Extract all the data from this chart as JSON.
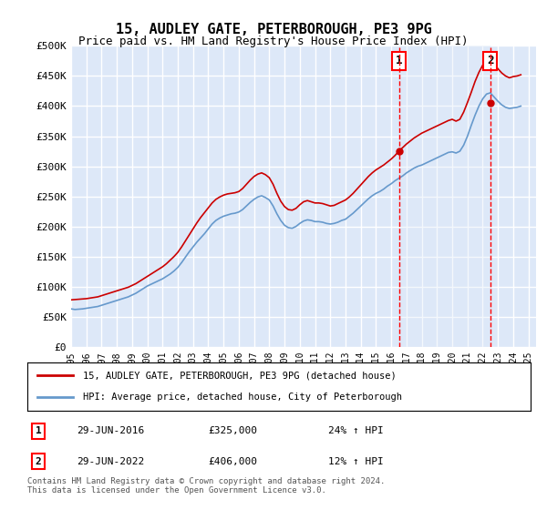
{
  "title": "15, AUDLEY GATE, PETERBOROUGH, PE3 9PG",
  "subtitle": "Price paid vs. HM Land Registry's House Price Index (HPI)",
  "xlabel": "",
  "ylabel": "",
  "ylim": [
    0,
    500000
  ],
  "yticks": [
    0,
    50000,
    100000,
    150000,
    200000,
    250000,
    300000,
    350000,
    400000,
    450000,
    500000
  ],
  "ytick_labels": [
    "£0",
    "£50K",
    "£100K",
    "£150K",
    "£200K",
    "£250K",
    "£300K",
    "£350K",
    "£400K",
    "£450K",
    "£500K"
  ],
  "xlim_start": 1995.0,
  "xlim_end": 2025.5,
  "bg_color": "#dde8f8",
  "plot_bg_color": "#dde8f8",
  "grid_color": "#ffffff",
  "red_color": "#cc0000",
  "blue_color": "#6699cc",
  "point1_x": 2016.5,
  "point1_y": 325000,
  "point1_label": "1",
  "point1_date": "29-JUN-2016",
  "point1_price": "£325,000",
  "point1_hpi": "24% ↑ HPI",
  "point2_x": 2022.5,
  "point2_y": 406000,
  "point2_label": "2",
  "point2_date": "29-JUN-2022",
  "point2_price": "£406,000",
  "point2_hpi": "12% ↑ HPI",
  "legend_line1": "15, AUDLEY GATE, PETERBOROUGH, PE3 9PG (detached house)",
  "legend_line2": "HPI: Average price, detached house, City of Peterborough",
  "footer": "Contains HM Land Registry data © Crown copyright and database right 2024.\nThis data is licensed under the Open Government Licence v3.0.",
  "hpi_data_x": [
    1995.0,
    1995.25,
    1995.5,
    1995.75,
    1996.0,
    1996.25,
    1996.5,
    1996.75,
    1997.0,
    1997.25,
    1997.5,
    1997.75,
    1998.0,
    1998.25,
    1998.5,
    1998.75,
    1999.0,
    1999.25,
    1999.5,
    1999.75,
    2000.0,
    2000.25,
    2000.5,
    2000.75,
    2001.0,
    2001.25,
    2001.5,
    2001.75,
    2002.0,
    2002.25,
    2002.5,
    2002.75,
    2003.0,
    2003.25,
    2003.5,
    2003.75,
    2004.0,
    2004.25,
    2004.5,
    2004.75,
    2005.0,
    2005.25,
    2005.5,
    2005.75,
    2006.0,
    2006.25,
    2006.5,
    2006.75,
    2007.0,
    2007.25,
    2007.5,
    2007.75,
    2008.0,
    2008.25,
    2008.5,
    2008.75,
    2009.0,
    2009.25,
    2009.5,
    2009.75,
    2010.0,
    2010.25,
    2010.5,
    2010.75,
    2011.0,
    2011.25,
    2011.5,
    2011.75,
    2012.0,
    2012.25,
    2012.5,
    2012.75,
    2013.0,
    2013.25,
    2013.5,
    2013.75,
    2014.0,
    2014.25,
    2014.5,
    2014.75,
    2015.0,
    2015.25,
    2015.5,
    2015.75,
    2016.0,
    2016.25,
    2016.5,
    2016.75,
    2017.0,
    2017.25,
    2017.5,
    2017.75,
    2018.0,
    2018.25,
    2018.5,
    2018.75,
    2019.0,
    2019.25,
    2019.5,
    2019.75,
    2020.0,
    2020.25,
    2020.5,
    2020.75,
    2021.0,
    2021.25,
    2021.5,
    2021.75,
    2022.0,
    2022.25,
    2022.5,
    2022.75,
    2023.0,
    2023.25,
    2023.5,
    2023.75,
    2024.0,
    2024.25,
    2024.5
  ],
  "hpi_data_y": [
    63000,
    62000,
    62500,
    63000,
    64000,
    65000,
    66000,
    67000,
    69000,
    71000,
    73000,
    75000,
    77000,
    79000,
    81000,
    83000,
    86000,
    89000,
    93000,
    97000,
    101000,
    104000,
    107000,
    110000,
    113000,
    117000,
    121000,
    126000,
    132000,
    140000,
    149000,
    158000,
    166000,
    174000,
    181000,
    188000,
    196000,
    204000,
    210000,
    214000,
    217000,
    219000,
    221000,
    222000,
    224000,
    228000,
    234000,
    240000,
    245000,
    249000,
    251000,
    248000,
    244000,
    234000,
    221000,
    210000,
    202000,
    198000,
    197000,
    200000,
    205000,
    209000,
    211000,
    210000,
    208000,
    208000,
    207000,
    205000,
    204000,
    205000,
    207000,
    210000,
    212000,
    217000,
    222000,
    228000,
    234000,
    240000,
    246000,
    251000,
    255000,
    258000,
    262000,
    267000,
    271000,
    276000,
    280000,
    284000,
    289000,
    293000,
    297000,
    300000,
    302000,
    305000,
    308000,
    311000,
    314000,
    317000,
    320000,
    323000,
    324000,
    322000,
    325000,
    335000,
    350000,
    368000,
    385000,
    400000,
    412000,
    420000,
    422000,
    415000,
    408000,
    402000,
    398000,
    396000,
    397000,
    398000,
    400000
  ],
  "red_data_x": [
    1995.0,
    1995.25,
    1995.5,
    1995.75,
    1996.0,
    1996.25,
    1996.5,
    1996.75,
    1997.0,
    1997.25,
    1997.5,
    1997.75,
    1998.0,
    1998.25,
    1998.5,
    1998.75,
    1999.0,
    1999.25,
    1999.5,
    1999.75,
    2000.0,
    2000.25,
    2000.5,
    2000.75,
    2001.0,
    2001.25,
    2001.5,
    2001.75,
    2002.0,
    2002.25,
    2002.5,
    2002.75,
    2003.0,
    2003.25,
    2003.5,
    2003.75,
    2004.0,
    2004.25,
    2004.5,
    2004.75,
    2005.0,
    2005.25,
    2005.5,
    2005.75,
    2006.0,
    2006.25,
    2006.5,
    2006.75,
    2007.0,
    2007.25,
    2007.5,
    2007.75,
    2008.0,
    2008.25,
    2008.5,
    2008.75,
    2009.0,
    2009.25,
    2009.5,
    2009.75,
    2010.0,
    2010.25,
    2010.5,
    2010.75,
    2011.0,
    2011.25,
    2011.5,
    2011.75,
    2012.0,
    2012.25,
    2012.5,
    2012.75,
    2013.0,
    2013.25,
    2013.5,
    2013.75,
    2014.0,
    2014.25,
    2014.5,
    2014.75,
    2015.0,
    2015.25,
    2015.5,
    2015.75,
    2016.0,
    2016.25,
    2016.5,
    2016.75,
    2017.0,
    2017.25,
    2017.5,
    2017.75,
    2018.0,
    2018.25,
    2018.5,
    2018.75,
    2019.0,
    2019.25,
    2019.5,
    2019.75,
    2020.0,
    2020.25,
    2020.5,
    2020.75,
    2021.0,
    2021.25,
    2021.5,
    2021.75,
    2022.0,
    2022.25,
    2022.5,
    2022.75,
    2023.0,
    2023.25,
    2023.5,
    2023.75,
    2024.0,
    2024.25,
    2024.5
  ],
  "red_data_y": [
    78000,
    78500,
    79000,
    79500,
    80000,
    81000,
    82000,
    83000,
    85000,
    87000,
    89000,
    91000,
    93000,
    95000,
    97000,
    99000,
    102000,
    105000,
    109000,
    113000,
    117000,
    121000,
    125000,
    129000,
    133000,
    138000,
    144000,
    150000,
    157000,
    166000,
    176000,
    186000,
    196000,
    206000,
    215000,
    223000,
    231000,
    239000,
    245000,
    249000,
    252000,
    254000,
    255000,
    256000,
    258000,
    263000,
    270000,
    277000,
    283000,
    287000,
    289000,
    286000,
    281000,
    270000,
    255000,
    242000,
    233000,
    228000,
    227000,
    230000,
    236000,
    241000,
    243000,
    241000,
    239000,
    239000,
    238000,
    236000,
    234000,
    235000,
    238000,
    241000,
    244000,
    249000,
    255000,
    262000,
    269000,
    276000,
    283000,
    289000,
    294000,
    298000,
    302000,
    307000,
    312000,
    318000,
    325000,
    331000,
    337000,
    342000,
    347000,
    351000,
    355000,
    358000,
    361000,
    364000,
    367000,
    370000,
    373000,
    376000,
    378000,
    375000,
    378000,
    390000,
    406000,
    423000,
    441000,
    456000,
    468000,
    475000,
    477000,
    470000,
    462000,
    455000,
    450000,
    447000,
    449000,
    450000,
    452000
  ],
  "xtick_years": [
    1995,
    1996,
    1997,
    1998,
    1999,
    2000,
    2001,
    2002,
    2003,
    2004,
    2005,
    2006,
    2007,
    2008,
    2009,
    2010,
    2011,
    2012,
    2013,
    2014,
    2015,
    2016,
    2017,
    2018,
    2019,
    2020,
    2021,
    2022,
    2023,
    2024,
    2025
  ]
}
